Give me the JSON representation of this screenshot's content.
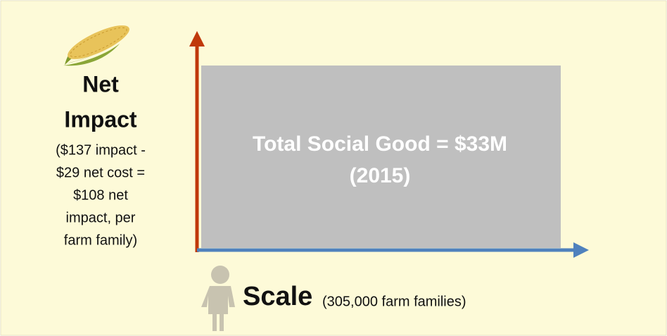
{
  "y_axis": {
    "label_lines": [
      "Net",
      "Impact"
    ],
    "detail_lines": [
      "($137 impact -",
      "$29 net cost =",
      "$108 net",
      "impact, per",
      "farm family)"
    ]
  },
  "box": {
    "lines": [
      "Total Social Good = $33M",
      "(2015)"
    ]
  },
  "x_axis": {
    "label": "Scale",
    "detail": "(305,000 farm families)"
  }
}
